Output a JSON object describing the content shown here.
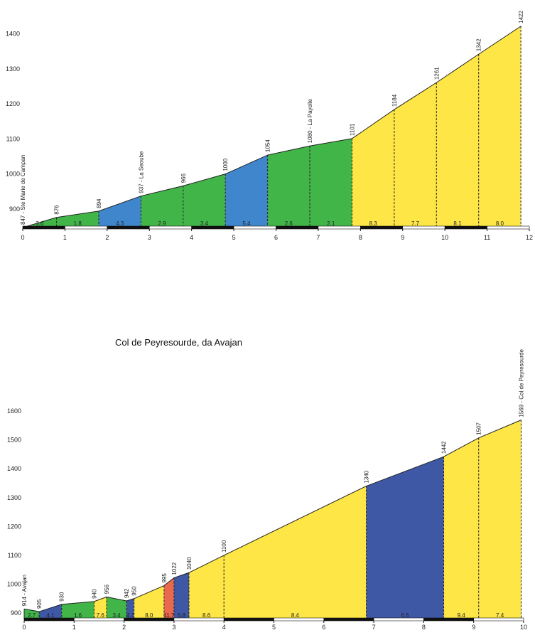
{
  "colors": {
    "green": "#41b548",
    "blue": "#3f86cc",
    "yellow": "#fde645",
    "navy": "#3e58a6",
    "red": "#e9694f"
  },
  "chart_data": [
    {
      "type": "area",
      "title": "",
      "xlabel": "",
      "ylabel": "",
      "xlim": [
        0,
        12
      ],
      "ylim": [
        847,
        1440
      ],
      "y_ticks": [
        900,
        1000,
        1100,
        1200,
        1300,
        1400
      ],
      "x_ticks": [
        0,
        1,
        2,
        3,
        4,
        5,
        6,
        7,
        8,
        9,
        10,
        11,
        12
      ],
      "profile": [
        {
          "x": 0.0,
          "y": 847,
          "label": "847 - Ste Marie de Campan"
        },
        {
          "x": 0.8,
          "y": 876,
          "label": "876"
        },
        {
          "x": 1.8,
          "y": 894,
          "label": "894"
        },
        {
          "x": 2.8,
          "y": 937,
          "label": "937 - La Seoube"
        },
        {
          "x": 3.8,
          "y": 966,
          "label": "966"
        },
        {
          "x": 4.8,
          "y": 1000,
          "label": "1000"
        },
        {
          "x": 5.8,
          "y": 1054,
          "label": "1054"
        },
        {
          "x": 6.8,
          "y": 1080,
          "label": "1080 - La Payolle"
        },
        {
          "x": 7.8,
          "y": 1101,
          "label": "1101"
        },
        {
          "x": 8.8,
          "y": 1184,
          "label": "1184"
        },
        {
          "x": 9.8,
          "y": 1261,
          "label": "1261"
        },
        {
          "x": 10.8,
          "y": 1342,
          "label": "1342"
        },
        {
          "x": 11.8,
          "y": 1422,
          "label": "1422"
        }
      ],
      "segments": [
        {
          "grade": "3.6",
          "color": "green"
        },
        {
          "grade": "1.8",
          "color": "green"
        },
        {
          "grade": "4.3",
          "color": "blue"
        },
        {
          "grade": "2.9",
          "color": "green"
        },
        {
          "grade": "3.4",
          "color": "green"
        },
        {
          "grade": "5.4",
          "color": "blue"
        },
        {
          "grade": "2.6",
          "color": "green"
        },
        {
          "grade": "2.1",
          "color": "green"
        },
        {
          "grade": "8.3",
          "color": "yellow"
        },
        {
          "grade": "7.7",
          "color": "yellow"
        },
        {
          "grade": "8.1",
          "color": "yellow"
        },
        {
          "grade": "8.0",
          "color": "yellow"
        }
      ]
    },
    {
      "type": "area",
      "title": "Col de Peyresourde, da Avajan",
      "xlabel": "",
      "ylabel": "",
      "xlim": [
        0,
        10
      ],
      "ylim": [
        878,
        1610
      ],
      "y_ticks": [
        900,
        1000,
        1100,
        1200,
        1300,
        1400,
        1500,
        1600
      ],
      "x_ticks": [
        0,
        1,
        2,
        3,
        4,
        5,
        6,
        7,
        8,
        9,
        10
      ],
      "profile": [
        {
          "x": 0.0,
          "y": 914,
          "label": "914 - Avajan"
        },
        {
          "x": 0.3,
          "y": 905,
          "label": "905"
        },
        {
          "x": 0.75,
          "y": 930,
          "label": "930"
        },
        {
          "x": 1.4,
          "y": 940,
          "label": "940"
        },
        {
          "x": 1.65,
          "y": 956,
          "label": "956"
        },
        {
          "x": 2.05,
          "y": 942,
          "label": "942"
        },
        {
          "x": 2.2,
          "y": 950,
          "label": "950"
        },
        {
          "x": 2.8,
          "y": 995,
          "label": "995"
        },
        {
          "x": 3.0,
          "y": 1022,
          "label": "1022"
        },
        {
          "x": 3.3,
          "y": 1040,
          "label": "1040"
        },
        {
          "x": 4.0,
          "y": 1100,
          "label": "1100"
        },
        {
          "x": 6.85,
          "y": 1340,
          "label": "1340"
        },
        {
          "x": 8.4,
          "y": 1442,
          "label": "1442"
        },
        {
          "x": 9.1,
          "y": 1507,
          "label": "1507"
        },
        {
          "x": 9.95,
          "y": 1569,
          "label": "1569 - Col de Peyresourde"
        }
      ],
      "segments": [
        {
          "grade": "2.7",
          "color": "green"
        },
        {
          "grade": "4.1",
          "color": "navy"
        },
        {
          "grade": "1.6",
          "color": "green"
        },
        {
          "grade": "7.6",
          "color": "yellow"
        },
        {
          "grade": "3.4",
          "color": "green"
        },
        {
          "grade": "4.7",
          "color": "navy"
        },
        {
          "grade": "8.0",
          "color": "yellow"
        },
        {
          "grade": "11.7",
          "color": "red"
        },
        {
          "grade": "5.8",
          "color": "navy"
        },
        {
          "grade": "8.6",
          "color": "yellow"
        },
        {
          "grade": "8.4",
          "color": "yellow"
        },
        {
          "grade": "6.5",
          "color": "navy"
        },
        {
          "grade": "9.4",
          "color": "yellow"
        },
        {
          "grade": "7.4",
          "color": "yellow"
        }
      ]
    }
  ]
}
